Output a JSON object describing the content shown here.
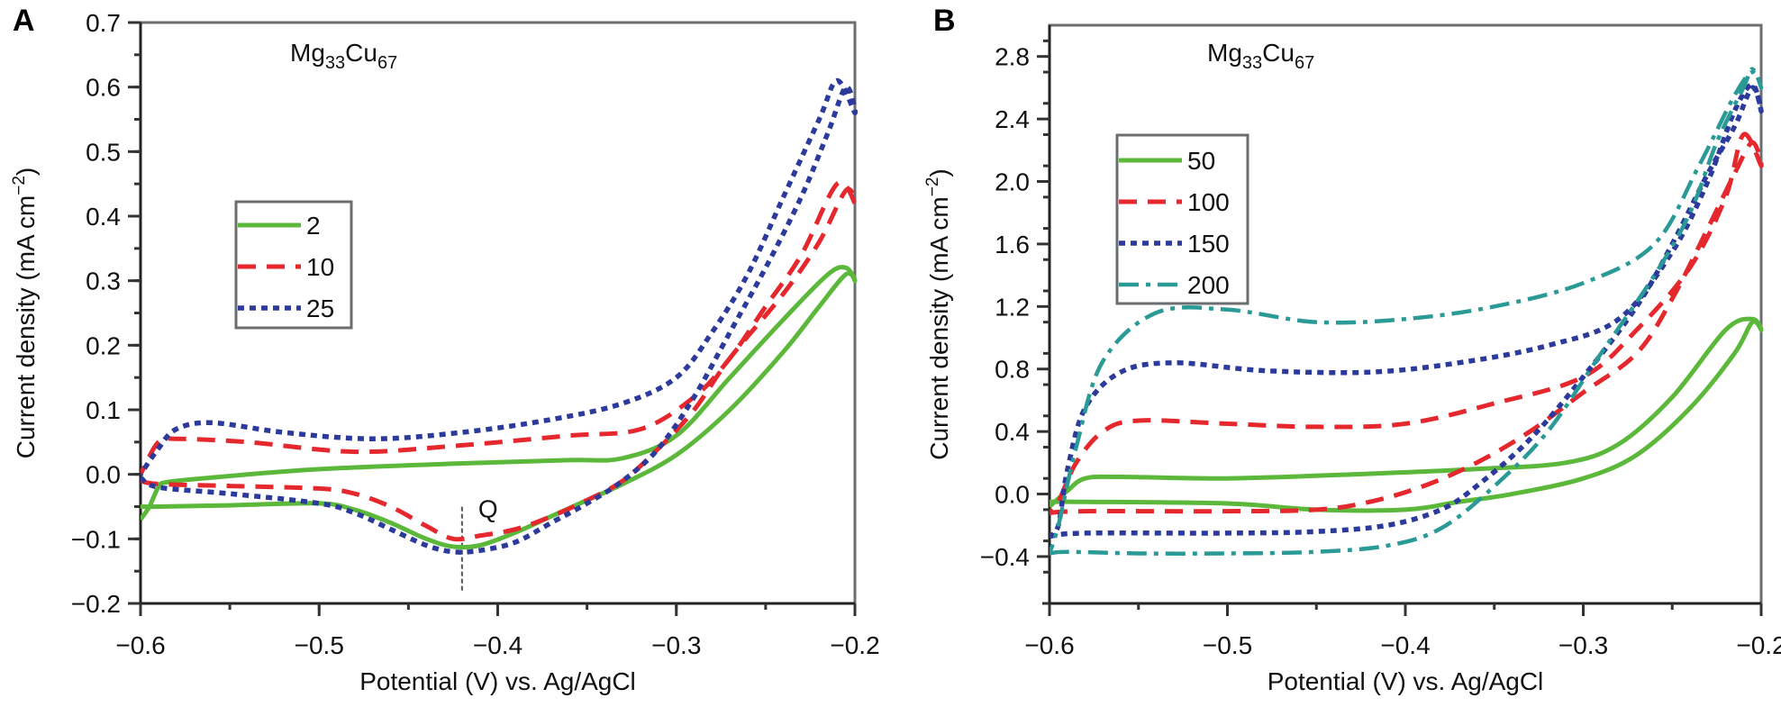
{
  "chart_data": [
    {
      "panel": "A",
      "type": "line",
      "title": "Mg33Cu67",
      "title_parts": {
        "base1": "Mg",
        "sub1": "33",
        "base2": "Cu",
        "sub2": "67"
      },
      "xlabel": "Potential (V) vs. Ag/AgCl",
      "ylabel": "Current density (mA cm−2)",
      "xlim": [
        -0.6,
        -0.2
      ],
      "ylim": [
        -0.2,
        0.7
      ],
      "xticks": [
        -0.6,
        -0.5,
        -0.4,
        -0.3,
        -0.2
      ],
      "xtick_labels": [
        "−0.6",
        "−0.5",
        "−0.4",
        "−0.3",
        "−0.2"
      ],
      "yticks": [
        -0.2,
        -0.1,
        0.0,
        0.1,
        0.2,
        0.3,
        0.4,
        0.5,
        0.6,
        0.7
      ],
      "ytick_labels": [
        "−0.2",
        "−0.1",
        "0.0",
        "0.1",
        "0.2",
        "0.3",
        "0.4",
        "0.5",
        "0.6",
        "0.7"
      ],
      "grid": false,
      "legend_position": "upper-left",
      "annotations": [
        {
          "text": "Q",
          "x": -0.42,
          "y": -0.05,
          "marker_line_x": -0.42,
          "marker_line_y": [
            -0.18,
            -0.05
          ]
        }
      ],
      "series": [
        {
          "name": "2",
          "color": "#5cb83a",
          "style": "solid",
          "points": [
            [
              -0.6,
              -0.05
            ],
            [
              -0.59,
              -0.05
            ],
            [
              -0.55,
              -0.048
            ],
            [
              -0.5,
              -0.045
            ],
            [
              -0.48,
              -0.055
            ],
            [
              -0.46,
              -0.075
            ],
            [
              -0.44,
              -0.1
            ],
            [
              -0.425,
              -0.112
            ],
            [
              -0.41,
              -0.11
            ],
            [
              -0.39,
              -0.09
            ],
            [
              -0.37,
              -0.065
            ],
            [
              -0.35,
              -0.04
            ],
            [
              -0.33,
              -0.015
            ],
            [
              -0.3,
              0.03
            ],
            [
              -0.27,
              0.1
            ],
            [
              -0.24,
              0.19
            ],
            [
              -0.22,
              0.26
            ],
            [
              -0.205,
              0.31
            ],
            [
              -0.2,
              0.3
            ],
            [
              -0.205,
              0.32
            ],
            [
              -0.215,
              0.31
            ],
            [
              -0.24,
              0.24
            ],
            [
              -0.27,
              0.15
            ],
            [
              -0.3,
              0.06
            ],
            [
              -0.33,
              0.025
            ],
            [
              -0.36,
              0.022
            ],
            [
              -0.42,
              0.017
            ],
            [
              -0.5,
              0.008
            ],
            [
              -0.56,
              -0.005
            ],
            [
              -0.585,
              -0.012
            ],
            [
              -0.59,
              -0.02
            ],
            [
              -0.595,
              -0.05
            ],
            [
              -0.6,
              -0.07
            ]
          ]
        },
        {
          "name": "10",
          "color": "#e5282e",
          "style": "dashed",
          "points": [
            [
              -0.6,
              -0.01
            ],
            [
              -0.59,
              -0.015
            ],
            [
              -0.55,
              -0.018
            ],
            [
              -0.5,
              -0.022
            ],
            [
              -0.48,
              -0.03
            ],
            [
              -0.46,
              -0.05
            ],
            [
              -0.44,
              -0.08
            ],
            [
              -0.425,
              -0.1
            ],
            [
              -0.41,
              -0.095
            ],
            [
              -0.39,
              -0.085
            ],
            [
              -0.37,
              -0.065
            ],
            [
              -0.35,
              -0.04
            ],
            [
              -0.33,
              -0.01
            ],
            [
              -0.31,
              0.04
            ],
            [
              -0.29,
              0.1
            ],
            [
              -0.27,
              0.18
            ],
            [
              -0.24,
              0.28
            ],
            [
              -0.22,
              0.36
            ],
            [
              -0.205,
              0.44
            ],
            [
              -0.2,
              0.42
            ],
            [
              -0.21,
              0.45
            ],
            [
              -0.23,
              0.34
            ],
            [
              -0.25,
              0.26
            ],
            [
              -0.27,
              0.18
            ],
            [
              -0.29,
              0.12
            ],
            [
              -0.32,
              0.07
            ],
            [
              -0.36,
              0.06
            ],
            [
              -0.42,
              0.045
            ],
            [
              -0.48,
              0.035
            ],
            [
              -0.54,
              0.05
            ],
            [
              -0.58,
              0.055
            ],
            [
              -0.59,
              0.05
            ],
            [
              -0.6,
              0.0
            ]
          ]
        },
        {
          "name": "25",
          "color": "#2b3a9b",
          "style": "dotted",
          "points": [
            [
              -0.6,
              -0.005
            ],
            [
              -0.59,
              -0.02
            ],
            [
              -0.55,
              -0.03
            ],
            [
              -0.5,
              -0.045
            ],
            [
              -0.48,
              -0.06
            ],
            [
              -0.46,
              -0.085
            ],
            [
              -0.44,
              -0.11
            ],
            [
              -0.425,
              -0.12
            ],
            [
              -0.41,
              -0.118
            ],
            [
              -0.39,
              -0.105
            ],
            [
              -0.37,
              -0.075
            ],
            [
              -0.35,
              -0.045
            ],
            [
              -0.33,
              -0.01
            ],
            [
              -0.31,
              0.04
            ],
            [
              -0.29,
              0.12
            ],
            [
              -0.27,
              0.22
            ],
            [
              -0.25,
              0.32
            ],
            [
              -0.23,
              0.43
            ],
            [
              -0.215,
              0.53
            ],
            [
              -0.205,
              0.6
            ],
            [
              -0.2,
              0.56
            ],
            [
              -0.21,
              0.61
            ],
            [
              -0.22,
              0.55
            ],
            [
              -0.24,
              0.43
            ],
            [
              -0.26,
              0.31
            ],
            [
              -0.28,
              0.22
            ],
            [
              -0.3,
              0.15
            ],
            [
              -0.33,
              0.11
            ],
            [
              -0.37,
              0.085
            ],
            [
              -0.42,
              0.065
            ],
            [
              -0.47,
              0.055
            ],
            [
              -0.52,
              0.065
            ],
            [
              -0.56,
              0.08
            ],
            [
              -0.58,
              0.07
            ],
            [
              -0.59,
              0.04
            ],
            [
              -0.6,
              0.0
            ]
          ]
        }
      ]
    },
    {
      "panel": "B",
      "type": "line",
      "title": "Mg33Cu67",
      "title_parts": {
        "base1": "Mg",
        "sub1": "33",
        "base2": "Cu",
        "sub2": "67"
      },
      "xlabel": "Potential (V) vs. Ag/AgCl",
      "ylabel": "Current density (mA cm−2)",
      "xlim": [
        -0.6,
        -0.2
      ],
      "ylim": [
        -0.7,
        3.0
      ],
      "xticks": [
        -0.6,
        -0.5,
        -0.4,
        -0.3,
        -0.2
      ],
      "xtick_labels": [
        "−0.6",
        "−0.5",
        "−0.4",
        "−0.3",
        "−0.2"
      ],
      "yticks": [
        -0.4,
        0.0,
        0.4,
        0.8,
        1.2,
        1.6,
        2.0,
        2.4,
        2.8
      ],
      "ytick_labels": [
        "−0.4",
        "0.0",
        "0.4",
        "0.8",
        "1.2",
        "1.6",
        "2.0",
        "2.4",
        "2.8"
      ],
      "minor_yticks": [
        -0.6,
        -0.2,
        0.2,
        0.6,
        1.0,
        1.4,
        1.8,
        2.2,
        2.6
      ],
      "grid": false,
      "legend_position": "upper-left",
      "series": [
        {
          "name": "50",
          "color": "#5cb83a",
          "style": "solid",
          "points": [
            [
              -0.6,
              -0.05
            ],
            [
              -0.58,
              -0.05
            ],
            [
              -0.5,
              -0.06
            ],
            [
              -0.45,
              -0.1
            ],
            [
              -0.4,
              -0.1
            ],
            [
              -0.37,
              -0.05
            ],
            [
              -0.34,
              0.0
            ],
            [
              -0.3,
              0.1
            ],
            [
              -0.27,
              0.25
            ],
            [
              -0.24,
              0.55
            ],
            [
              -0.215,
              0.9
            ],
            [
              -0.205,
              1.1
            ],
            [
              -0.2,
              1.05
            ],
            [
              -0.205,
              1.12
            ],
            [
              -0.22,
              1.05
            ],
            [
              -0.25,
              0.62
            ],
            [
              -0.28,
              0.32
            ],
            [
              -0.31,
              0.2
            ],
            [
              -0.36,
              0.16
            ],
            [
              -0.42,
              0.13
            ],
            [
              -0.5,
              0.1
            ],
            [
              -0.56,
              0.11
            ],
            [
              -0.58,
              0.1
            ],
            [
              -0.59,
              0.02
            ],
            [
              -0.6,
              -0.08
            ]
          ]
        },
        {
          "name": "100",
          "color": "#e5282e",
          "style": "dashed",
          "points": [
            [
              -0.6,
              -0.12
            ],
            [
              -0.58,
              -0.11
            ],
            [
              -0.5,
              -0.11
            ],
            [
              -0.45,
              -0.1
            ],
            [
              -0.42,
              -0.05
            ],
            [
              -0.39,
              0.05
            ],
            [
              -0.36,
              0.2
            ],
            [
              -0.33,
              0.4
            ],
            [
              -0.3,
              0.65
            ],
            [
              -0.27,
              0.9
            ],
            [
              -0.25,
              1.25
            ],
            [
              -0.23,
              1.7
            ],
            [
              -0.215,
              2.05
            ],
            [
              -0.205,
              2.25
            ],
            [
              -0.2,
              2.1
            ],
            [
              -0.21,
              2.3
            ],
            [
              -0.22,
              1.9
            ],
            [
              -0.24,
              1.45
            ],
            [
              -0.27,
              1.05
            ],
            [
              -0.3,
              0.75
            ],
            [
              -0.35,
              0.58
            ],
            [
              -0.4,
              0.45
            ],
            [
              -0.45,
              0.43
            ],
            [
              -0.5,
              0.45
            ],
            [
              -0.55,
              0.47
            ],
            [
              -0.57,
              0.4
            ],
            [
              -0.585,
              0.2
            ],
            [
              -0.595,
              -0.05
            ],
            [
              -0.6,
              -0.12
            ]
          ]
        },
        {
          "name": "150",
          "color": "#2b3a9b",
          "style": "dotted",
          "points": [
            [
              -0.6,
              -0.27
            ],
            [
              -0.58,
              -0.25
            ],
            [
              -0.5,
              -0.25
            ],
            [
              -0.45,
              -0.24
            ],
            [
              -0.41,
              -0.2
            ],
            [
              -0.38,
              -0.1
            ],
            [
              -0.36,
              0.05
            ],
            [
              -0.33,
              0.35
            ],
            [
              -0.3,
              0.75
            ],
            [
              -0.27,
              1.2
            ],
            [
              -0.25,
              1.6
            ],
            [
              -0.23,
              2.05
            ],
            [
              -0.215,
              2.35
            ],
            [
              -0.205,
              2.6
            ],
            [
              -0.2,
              2.45
            ],
            [
              -0.205,
              2.62
            ],
            [
              -0.215,
              2.45
            ],
            [
              -0.23,
              2.0
            ],
            [
              -0.25,
              1.55
            ],
            [
              -0.28,
              1.12
            ],
            [
              -0.32,
              0.95
            ],
            [
              -0.37,
              0.84
            ],
            [
              -0.42,
              0.78
            ],
            [
              -0.48,
              0.79
            ],
            [
              -0.53,
              0.84
            ],
            [
              -0.56,
              0.78
            ],
            [
              -0.58,
              0.55
            ],
            [
              -0.59,
              0.15
            ],
            [
              -0.595,
              -0.2
            ],
            [
              -0.6,
              -0.27
            ]
          ]
        },
        {
          "name": "200",
          "color": "#2a9a96",
          "style": "dashdot",
          "points": [
            [
              -0.6,
              -0.38
            ],
            [
              -0.59,
              -0.37
            ],
            [
              -0.55,
              -0.38
            ],
            [
              -0.5,
              -0.38
            ],
            [
              -0.45,
              -0.37
            ],
            [
              -0.41,
              -0.33
            ],
            [
              -0.38,
              -0.22
            ],
            [
              -0.35,
              0.05
            ],
            [
              -0.32,
              0.4
            ],
            [
              -0.29,
              0.9
            ],
            [
              -0.26,
              1.4
            ],
            [
              -0.24,
              1.8
            ],
            [
              -0.225,
              2.25
            ],
            [
              -0.21,
              2.6
            ],
            [
              -0.205,
              2.72
            ],
            [
              -0.2,
              2.6
            ],
            [
              -0.205,
              2.7
            ],
            [
              -0.215,
              2.55
            ],
            [
              -0.235,
              2.1
            ],
            [
              -0.26,
              1.6
            ],
            [
              -0.3,
              1.35
            ],
            [
              -0.35,
              1.2
            ],
            [
              -0.4,
              1.12
            ],
            [
              -0.45,
              1.1
            ],
            [
              -0.5,
              1.18
            ],
            [
              -0.54,
              1.16
            ],
            [
              -0.57,
              0.85
            ],
            [
              -0.585,
              0.3
            ],
            [
              -0.595,
              -0.2
            ],
            [
              -0.6,
              -0.38
            ]
          ]
        }
      ]
    }
  ]
}
